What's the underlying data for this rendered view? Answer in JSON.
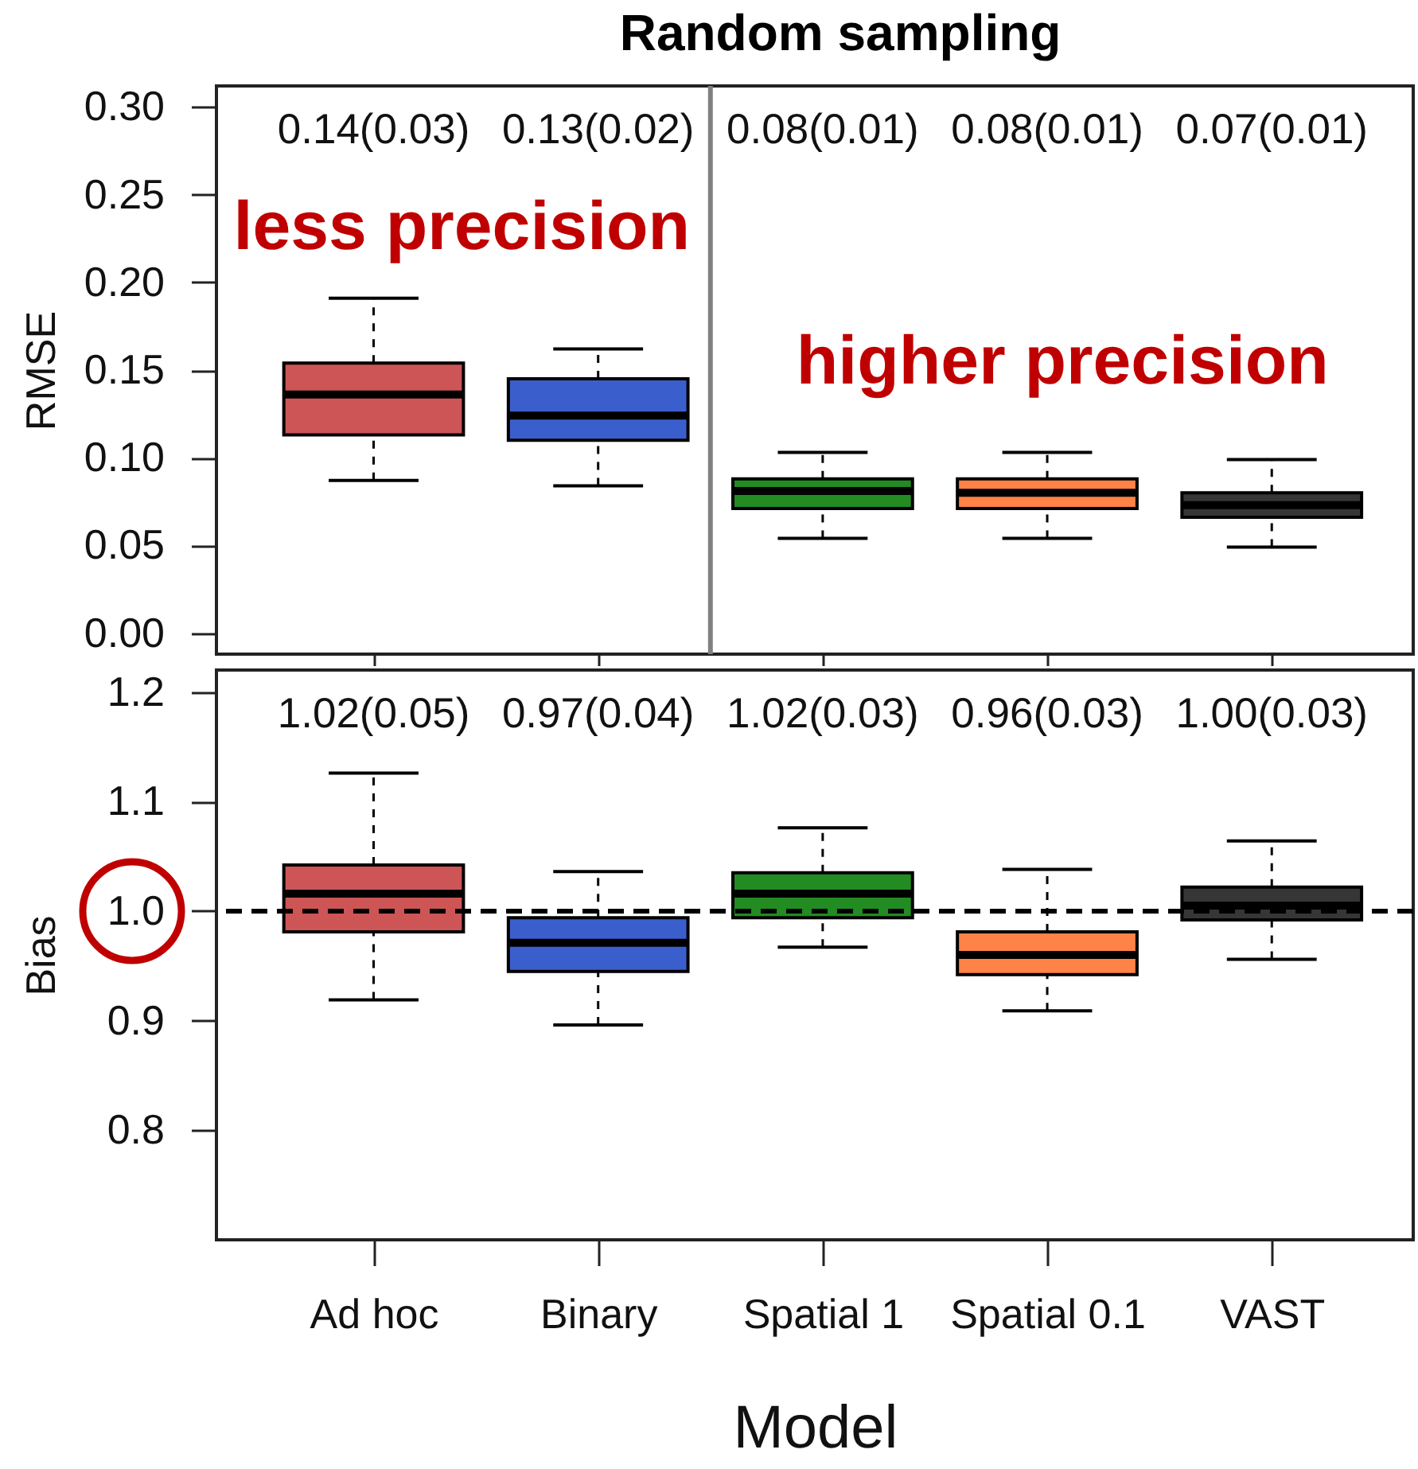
{
  "chart_data": [
    {
      "type": "box",
      "title": "Random sampling",
      "ylabel": "RMSE",
      "categories": [
        "Ad hoc",
        "Binary",
        "Spatial 1",
        "Spatial 0.1",
        "VAST"
      ],
      "colors": [
        "#cd5555",
        "#3a5fcd",
        "#228b22",
        "#ff8247",
        "#363636"
      ],
      "boxes": [
        {
          "low": 0.087,
          "q1": 0.113,
          "median": 0.136,
          "q3": 0.154,
          "high": 0.191
        },
        {
          "low": 0.084,
          "q1": 0.11,
          "median": 0.124,
          "q3": 0.145,
          "high": 0.162
        },
        {
          "low": 0.054,
          "q1": 0.071,
          "median": 0.081,
          "q3": 0.088,
          "high": 0.103
        },
        {
          "low": 0.054,
          "q1": 0.071,
          "median": 0.08,
          "q3": 0.088,
          "high": 0.103
        },
        {
          "low": 0.049,
          "q1": 0.066,
          "median": 0.073,
          "q3": 0.08,
          "high": 0.099
        }
      ],
      "ylim": [
        -0.012,
        0.312
      ],
      "yticks": [
        {
          "value": 0,
          "label": "0.00"
        },
        0.05,
        {
          "value": 0.1,
          "label": "0.10"
        },
        0.15,
        {
          "value": 0.2,
          "label": "0.20"
        },
        0.25,
        {
          "value": 0.3,
          "label": "0.30"
        }
      ],
      "tick_labels": "y",
      "annotations": [
        "0.14(0.03)",
        "0.13(0.02)",
        "0.08(0.01)",
        "0.08(0.01)",
        "0.07(0.01)",
        "less precision",
        "higher precision"
      ]
    },
    {
      "type": "box",
      "xlabel": "Model",
      "ylabel": "Bias",
      "categories": [
        "Ad hoc",
        "Binary",
        "Spatial 1",
        "Spatial 0.1",
        "VAST"
      ],
      "colors": [
        "#cd5555",
        "#3a5fcd",
        "#228b22",
        "#ff8247",
        "#363636"
      ],
      "boxes": [
        {
          "low": 0.919,
          "q1": 0.981,
          "median": 1.016,
          "q3": 1.042,
          "high": 1.126
        },
        {
          "low": 0.896,
          "q1": 0.945,
          "median": 0.971,
          "q3": 0.994,
          "high": 1.036
        },
        {
          "low": 0.967,
          "q1": 0.994,
          "median": 1.016,
          "q3": 1.035,
          "high": 1.076
        },
        {
          "low": 0.909,
          "q1": 0.942,
          "median": 0.96,
          "q3": 0.981,
          "high": 1.038
        },
        {
          "low": 0.956,
          "q1": 0.992,
          "median": 1.005,
          "q3": 1.022,
          "high": 1.064
        }
      ],
      "ylim": [
        0.7,
        1.22
      ],
      "yticks": [
        0.8,
        0.9,
        {
          "value": 1,
          "label": "1.0"
        },
        1.1,
        1.2
      ],
      "ref_lines": [
        {
          "axis": "y",
          "value": 1,
          "line_style": "dashed",
          "color": "#000000"
        }
      ],
      "annotations": [
        "1.02(0.05)",
        "0.97(0.04)",
        "1.02(0.03)",
        "0.96(0.03)",
        "1.00(0.03)"
      ]
    }
  ]
}
